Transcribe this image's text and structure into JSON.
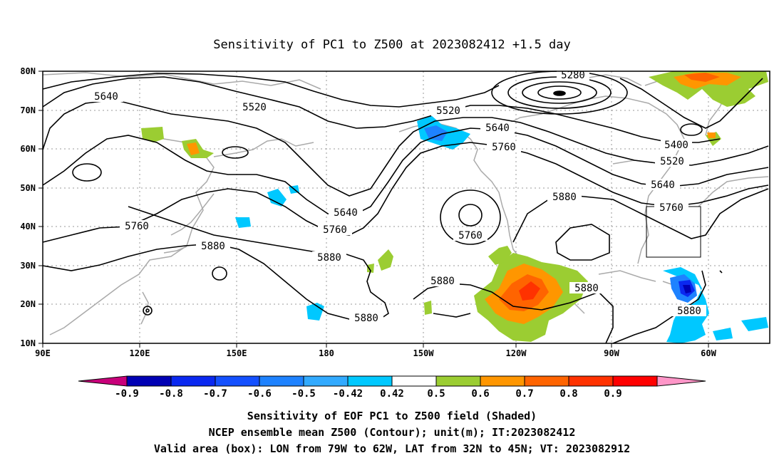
{
  "title": "Sensitivity of PC1 to Z500 at 2023082412 +1.5 day",
  "lat_ticks": [
    "80N",
    "70N",
    "60N",
    "50N",
    "40N",
    "30N",
    "20N",
    "10N"
  ],
  "lon_ticks": [
    "90E",
    "120E",
    "150E",
    "180",
    "150W",
    "120W",
    "90W",
    "60W"
  ],
  "contour_labels": {
    "c5280": "5280",
    "c5400": "5400",
    "c5520_a": "5520",
    "c5520_b": "5520",
    "c5520_c": "5520",
    "c5640_a": "5640",
    "c5640_b": "5640",
    "c5640_c": "5640",
    "c5640_d": "5640",
    "c5760_a": "5760",
    "c5760_b": "5760",
    "c5760_c": "5760",
    "c5760_d": "5760",
    "c5760_e": "5760",
    "c5880_a": "5880",
    "c5880_b": "5880",
    "c5880_c": "5880",
    "c5880_d": "5880",
    "c5880_e": "5880",
    "c5880_f": "5880",
    "c5880_g": "5880"
  },
  "colorbar": {
    "labels": [
      "-0.9",
      "-0.8",
      "-0.7",
      "-0.6",
      "-0.5",
      "-0.42",
      "0.42",
      "0.5",
      "0.6",
      "0.7",
      "0.8",
      "0.9"
    ],
    "colors": [
      "#0000b4",
      "#0a28f0",
      "#1450ff",
      "#1e82ff",
      "#32aaff",
      "#00c8ff",
      "#ffffff",
      "#9bcd32",
      "#ff9600",
      "#ff6400",
      "#ff3200",
      "#ff0000"
    ],
    "low_color": "#c8007a",
    "high_color": "#ff96c8"
  },
  "caption": {
    "line1": "Sensitivity of EOF PC1 to Z500 field (Shaded)",
    "line2": "NCEP ensemble mean Z500 (Contour); unit(m); IT:2023082412",
    "line3": "Valid area (box): LON from 79W to 62W, LAT from 32N to 45N; VT: 2023082912"
  }
}
